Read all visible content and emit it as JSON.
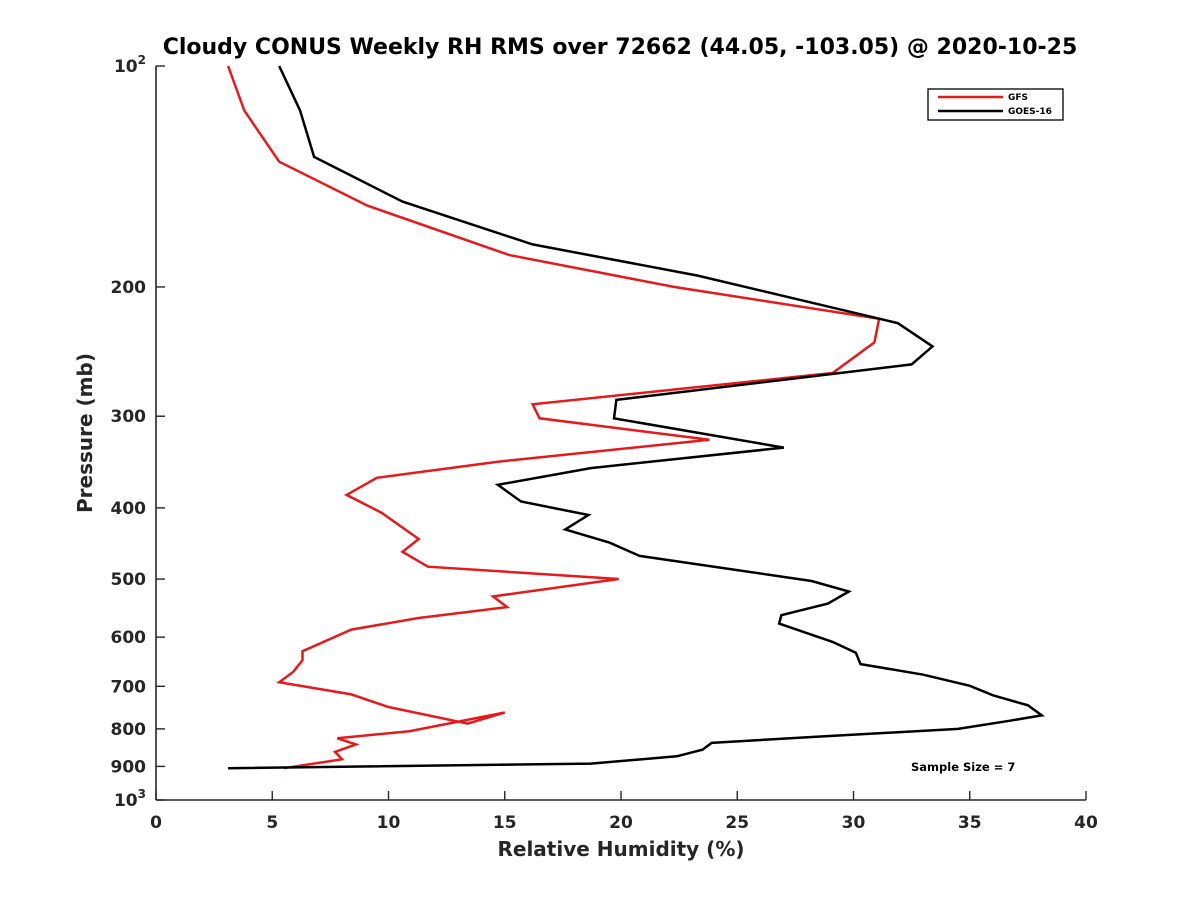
{
  "chart_data": {
    "type": "line",
    "title": "Cloudy CONUS Weekly RH RMS over 72662 (44.05, -103.05) @ 2020-10-25",
    "xlabel": "Relative Humidity (%)",
    "ylabel": "Pressure (mb)",
    "xlim": [
      0,
      40
    ],
    "ylim": [
      100,
      1000
    ],
    "y_scale": "log",
    "y_reversed": true,
    "x_ticks": [
      "0",
      "5",
      "10",
      "15",
      "20",
      "25",
      "30",
      "35",
      "40"
    ],
    "y_ticks": [
      {
        "value": 100,
        "base": "10",
        "exp": "2"
      },
      {
        "value": 200,
        "label": "200"
      },
      {
        "value": 300,
        "label": "300"
      },
      {
        "value": 400,
        "label": "400"
      },
      {
        "value": 500,
        "label": "500"
      },
      {
        "value": 600,
        "label": "600"
      },
      {
        "value": 700,
        "label": "700"
      },
      {
        "value": 800,
        "label": "800"
      },
      {
        "value": 900,
        "label": "900"
      },
      {
        "value": 1000,
        "base": "10",
        "exp": "3"
      }
    ],
    "legend_position": "top-right",
    "annotation": "Sample Size = 7",
    "series": [
      {
        "name": "GFS",
        "color": "#e41a1c",
        "points": [
          [
            3.1,
            100
          ],
          [
            3.8,
            115
          ],
          [
            5.3,
            135
          ],
          [
            9.1,
            155
          ],
          [
            15.2,
            181
          ],
          [
            22.3,
            200
          ],
          [
            31.1,
            221
          ],
          [
            30.9,
            238
          ],
          [
            29.1,
            262
          ],
          [
            16.2,
            289
          ],
          [
            16.5,
            302
          ],
          [
            23.8,
            323
          ],
          [
            14.7,
            346
          ],
          [
            9.5,
            364
          ],
          [
            8.2,
            384
          ],
          [
            9.7,
            406
          ],
          [
            11.3,
            441
          ],
          [
            10.6,
            459
          ],
          [
            11.7,
            481
          ],
          [
            19.9,
            500
          ],
          [
            14.5,
            528
          ],
          [
            15.1,
            546
          ],
          [
            11.3,
            565
          ],
          [
            8.4,
            586
          ],
          [
            6.3,
            627
          ],
          [
            6.3,
            645
          ],
          [
            5.9,
            669
          ],
          [
            5.3,
            691
          ],
          [
            8.4,
            718
          ],
          [
            10.0,
            747
          ],
          [
            13.4,
            787
          ],
          [
            15.0,
            760
          ],
          [
            10.9,
            806
          ],
          [
            7.8,
            824
          ],
          [
            8.6,
            840
          ],
          [
            7.7,
            860
          ],
          [
            8.0,
            880
          ],
          [
            5.5,
            905
          ]
        ]
      },
      {
        "name": "GOES-16",
        "color": "#000000",
        "points": [
          [
            5.3,
            100
          ],
          [
            6.2,
            115
          ],
          [
            6.8,
            133
          ],
          [
            10.6,
            153
          ],
          [
            16.2,
            175
          ],
          [
            23.3,
            193
          ],
          [
            31.9,
            224
          ],
          [
            33.4,
            241
          ],
          [
            32.5,
            255
          ],
          [
            19.8,
            285
          ],
          [
            19.7,
            302
          ],
          [
            27.0,
            331
          ],
          [
            18.7,
            353
          ],
          [
            14.7,
            372
          ],
          [
            15.7,
            392
          ],
          [
            18.6,
            409
          ],
          [
            17.6,
            428
          ],
          [
            19.5,
            446
          ],
          [
            20.8,
            465
          ],
          [
            28.2,
            503
          ],
          [
            29.8,
            520
          ],
          [
            28.9,
            540
          ],
          [
            26.9,
            560
          ],
          [
            26.8,
            575
          ],
          [
            29.1,
            609
          ],
          [
            30.1,
            630
          ],
          [
            30.3,
            653
          ],
          [
            33.0,
            675
          ],
          [
            35.0,
            699
          ],
          [
            36.0,
            720
          ],
          [
            37.5,
            743
          ],
          [
            38.1,
            767
          ],
          [
            36.7,
            780
          ],
          [
            34.5,
            800
          ],
          [
            28.4,
            820
          ],
          [
            23.9,
            836
          ],
          [
            23.5,
            854
          ],
          [
            22.4,
            872
          ],
          [
            18.7,
            892
          ],
          [
            3.1,
            905
          ]
        ]
      }
    ]
  }
}
